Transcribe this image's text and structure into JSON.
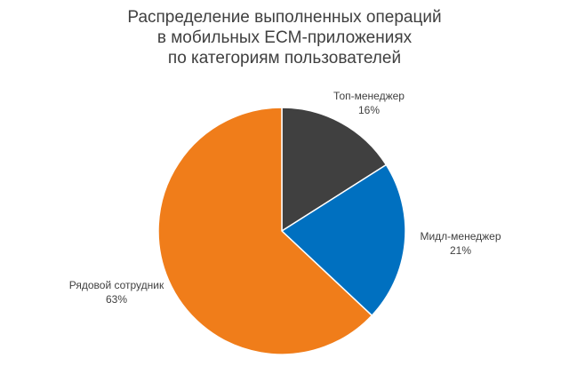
{
  "chart_data": {
    "type": "pie",
    "title_lines": [
      "Распределение выполненных операций",
      "в мобильных ECM-приложениях",
      "по категориям пользователей"
    ],
    "slices": [
      {
        "label": "Топ-менеджер",
        "value": 16,
        "value_label": "16%",
        "color": "#404040"
      },
      {
        "label": "Мидл-менеджер",
        "value": 21,
        "value_label": "21%",
        "color": "#0070C0"
      },
      {
        "label": "Рядовой сотрудник",
        "value": 63,
        "value_label": "63%",
        "color": "#F07D1A"
      }
    ],
    "start_angle_deg": 0,
    "direction": "clockwise",
    "legend": "none",
    "data_labels": "outside"
  }
}
